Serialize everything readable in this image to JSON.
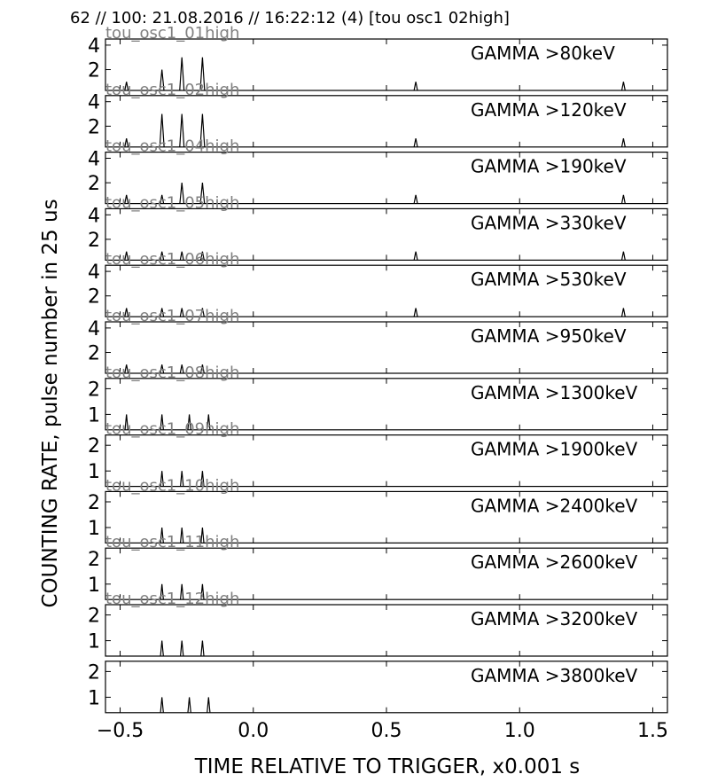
{
  "chart_data": {
    "type": "line",
    "title": "62 // 100:   21.08.2016 // 16:22:12 (4)  [tou osc1 02high]",
    "xlabel": "TIME RELATIVE TO TRIGGER,   x0.001 s",
    "ylabel": "COUNTING RATE,    pulse number in 25 us",
    "xlim": [
      -0.555,
      1.555
    ],
    "x_ticks": [
      "−0.5",
      "0.0",
      "0.5",
      "1.0",
      "1.5"
    ],
    "x_tick_values": [
      -0.5,
      0.0,
      0.5,
      1.0,
      1.5
    ],
    "grid": false,
    "line_color": "#000000",
    "osc_label_color": "#808080",
    "panels": [
      {
        "label": "GAMMA >80keV",
        "osc": "tou_osc1_01high",
        "ylim": [
          0.3,
          4.5
        ],
        "y_ticks": [
          2,
          4
        ],
        "peaks": [
          [
            -0.476,
            1
          ],
          [
            -0.343,
            2
          ],
          [
            -0.268,
            3
          ],
          [
            -0.191,
            3
          ],
          [
            0.61,
            1
          ],
          [
            1.39,
            1
          ]
        ]
      },
      {
        "label": "GAMMA >120keV",
        "osc": "tou_osc1_02high",
        "ylim": [
          0.3,
          4.5
        ],
        "y_ticks": [
          2,
          4
        ],
        "peaks": [
          [
            -0.476,
            1
          ],
          [
            -0.343,
            3
          ],
          [
            -0.268,
            3
          ],
          [
            -0.191,
            3
          ],
          [
            0.61,
            1
          ],
          [
            1.39,
            1
          ]
        ]
      },
      {
        "label": "GAMMA >190keV",
        "osc": "tou_osc1_04high",
        "ylim": [
          0.3,
          4.5
        ],
        "y_ticks": [
          2,
          4
        ],
        "peaks": [
          [
            -0.476,
            1
          ],
          [
            -0.343,
            1
          ],
          [
            -0.268,
            2
          ],
          [
            -0.191,
            2
          ],
          [
            0.61,
            1
          ],
          [
            1.39,
            1
          ]
        ]
      },
      {
        "label": "GAMMA >330keV",
        "osc": "tou_osc1_05high",
        "ylim": [
          0.3,
          4.5
        ],
        "y_ticks": [
          2,
          4
        ],
        "peaks": [
          [
            -0.476,
            1
          ],
          [
            -0.343,
            1
          ],
          [
            -0.268,
            1
          ],
          [
            -0.191,
            1
          ],
          [
            0.61,
            1
          ],
          [
            1.39,
            1
          ]
        ]
      },
      {
        "label": "GAMMA >530keV",
        "osc": "tou_osc1_06high",
        "ylim": [
          0.3,
          4.5
        ],
        "y_ticks": [
          2,
          4
        ],
        "peaks": [
          [
            -0.476,
            1
          ],
          [
            -0.343,
            1
          ],
          [
            -0.268,
            1
          ],
          [
            -0.191,
            1
          ],
          [
            0.61,
            1
          ],
          [
            1.39,
            1
          ]
        ]
      },
      {
        "label": "GAMMA >950keV",
        "osc": "tou_osc1_07high",
        "ylim": [
          0.3,
          4.5
        ],
        "y_ticks": [
          2,
          4
        ],
        "peaks": [
          [
            -0.476,
            1
          ],
          [
            -0.343,
            1
          ],
          [
            -0.268,
            1
          ],
          [
            -0.191,
            1
          ]
        ]
      },
      {
        "label": "GAMMA >1300keV",
        "osc": "tou_osc1_08high",
        "ylim": [
          0.4,
          2.4
        ],
        "y_ticks": [
          1,
          2
        ],
        "peaks": [
          [
            -0.476,
            1
          ],
          [
            -0.343,
            1
          ],
          [
            -0.24,
            1
          ],
          [
            -0.168,
            1
          ]
        ]
      },
      {
        "label": "GAMMA >1900keV",
        "osc": "tou_osc1_09high",
        "ylim": [
          0.4,
          2.4
        ],
        "y_ticks": [
          1,
          2
        ],
        "peaks": [
          [
            -0.343,
            1
          ],
          [
            -0.268,
            1
          ],
          [
            -0.191,
            1
          ]
        ]
      },
      {
        "label": "GAMMA >2400keV",
        "osc": "tou_osc1_10high",
        "ylim": [
          0.4,
          2.4
        ],
        "y_ticks": [
          1,
          2
        ],
        "peaks": [
          [
            -0.343,
            1
          ],
          [
            -0.268,
            1
          ],
          [
            -0.191,
            1
          ]
        ]
      },
      {
        "label": "GAMMA >2600keV",
        "osc": "tou_osc1_11high",
        "ylim": [
          0.4,
          2.4
        ],
        "y_ticks": [
          1,
          2
        ],
        "peaks": [
          [
            -0.343,
            1
          ],
          [
            -0.268,
            1
          ],
          [
            -0.191,
            1
          ]
        ]
      },
      {
        "label": "GAMMA >3200keV",
        "osc": "tou_osc1_12high",
        "ylim": [
          0.4,
          2.4
        ],
        "y_ticks": [
          1,
          2
        ],
        "peaks": [
          [
            -0.343,
            1
          ],
          [
            -0.268,
            1
          ],
          [
            -0.191,
            1
          ]
        ]
      },
      {
        "label": "GAMMA >3800keV",
        "osc": "",
        "ylim": [
          0.4,
          2.4
        ],
        "y_ticks": [
          1,
          2
        ],
        "peaks": [
          [
            -0.343,
            1
          ],
          [
            -0.24,
            1
          ],
          [
            -0.168,
            1
          ]
        ]
      }
    ]
  }
}
